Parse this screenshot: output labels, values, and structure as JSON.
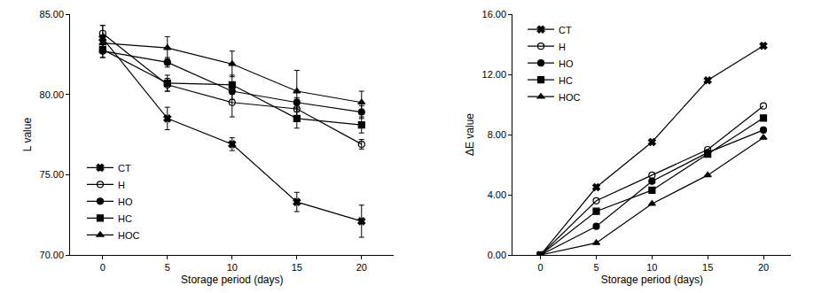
{
  "chart_data": [
    {
      "type": "line",
      "x_label": "Storage period (days)",
      "y_label": "L value",
      "x": [
        0,
        5,
        10,
        15,
        20
      ],
      "xlim": [
        -2.5,
        22.5
      ],
      "xticks": [
        0,
        5,
        10,
        15,
        20
      ],
      "ylim": [
        70,
        85
      ],
      "yticks": [
        {
          "value": 70,
          "label": "70.00"
        },
        {
          "value": 75,
          "label": "75.00"
        },
        {
          "value": 80,
          "label": "80.00"
        },
        {
          "value": 85,
          "label": "85.00"
        }
      ],
      "grid": false,
      "legend": "lower left",
      "series": [
        {
          "name": "CT",
          "color": "#000000",
          "marker": "x",
          "values": [
            83.5,
            78.5,
            76.9,
            73.3,
            72.1
          ],
          "errors": [
            0.8,
            0.7,
            0.4,
            0.6,
            1.0
          ]
        },
        {
          "name": "H",
          "color": "#000000",
          "marker": "circle-open",
          "values": [
            83.8,
            80.6,
            79.5,
            79.1,
            76.9
          ],
          "errors": [
            0.5,
            0.4,
            0.9,
            0.6,
            0.3
          ]
        },
        {
          "name": "HO",
          "color": "#000000",
          "marker": "circle",
          "values": [
            82.7,
            82.0,
            80.2,
            79.5,
            78.9
          ],
          "errors": [
            0.4,
            0.3,
            0.5,
            0.3,
            0.4
          ]
        },
        {
          "name": "HC",
          "color": "#000000",
          "marker": "square",
          "values": [
            82.8,
            80.7,
            80.6,
            78.5,
            78.1
          ],
          "errors": [
            0.5,
            0.5,
            0.6,
            0.6,
            0.5
          ]
        },
        {
          "name": "HOC",
          "color": "#000000",
          "marker": "triangle-up",
          "values": [
            83.2,
            82.9,
            81.9,
            80.2,
            79.5
          ],
          "errors": [
            0.5,
            0.7,
            0.8,
            1.3,
            0.7
          ]
        }
      ]
    },
    {
      "type": "line",
      "x_label": "Storage period (days)",
      "y_label": "ΔE value",
      "x": [
        0,
        5,
        10,
        15,
        20
      ],
      "xlim": [
        -2.5,
        22.5
      ],
      "xticks": [
        0,
        5,
        10,
        15,
        20
      ],
      "ylim": [
        0,
        16
      ],
      "yticks": [
        {
          "value": 0,
          "label": "0.00"
        },
        {
          "value": 4,
          "label": "4.00"
        },
        {
          "value": 8,
          "label": "8.00"
        },
        {
          "value": 12,
          "label": "12.00"
        },
        {
          "value": 16,
          "label": "16.00"
        }
      ],
      "grid": false,
      "legend": "upper left",
      "series": [
        {
          "name": "CT",
          "color": "#000000",
          "marker": "x",
          "values": [
            0,
            4.5,
            7.5,
            11.6,
            13.9
          ]
        },
        {
          "name": "H",
          "color": "#000000",
          "marker": "circle-open",
          "values": [
            0,
            3.6,
            5.3,
            7.0,
            9.9
          ]
        },
        {
          "name": "HO",
          "color": "#000000",
          "marker": "circle",
          "values": [
            0,
            1.9,
            4.9,
            6.8,
            8.3
          ]
        },
        {
          "name": "HC",
          "color": "#000000",
          "marker": "square",
          "values": [
            0,
            2.9,
            4.3,
            6.7,
            9.1
          ]
        },
        {
          "name": "HOC",
          "color": "#000000",
          "marker": "triangle-up",
          "values": [
            0,
            0.8,
            3.4,
            5.3,
            7.8
          ]
        }
      ]
    }
  ]
}
